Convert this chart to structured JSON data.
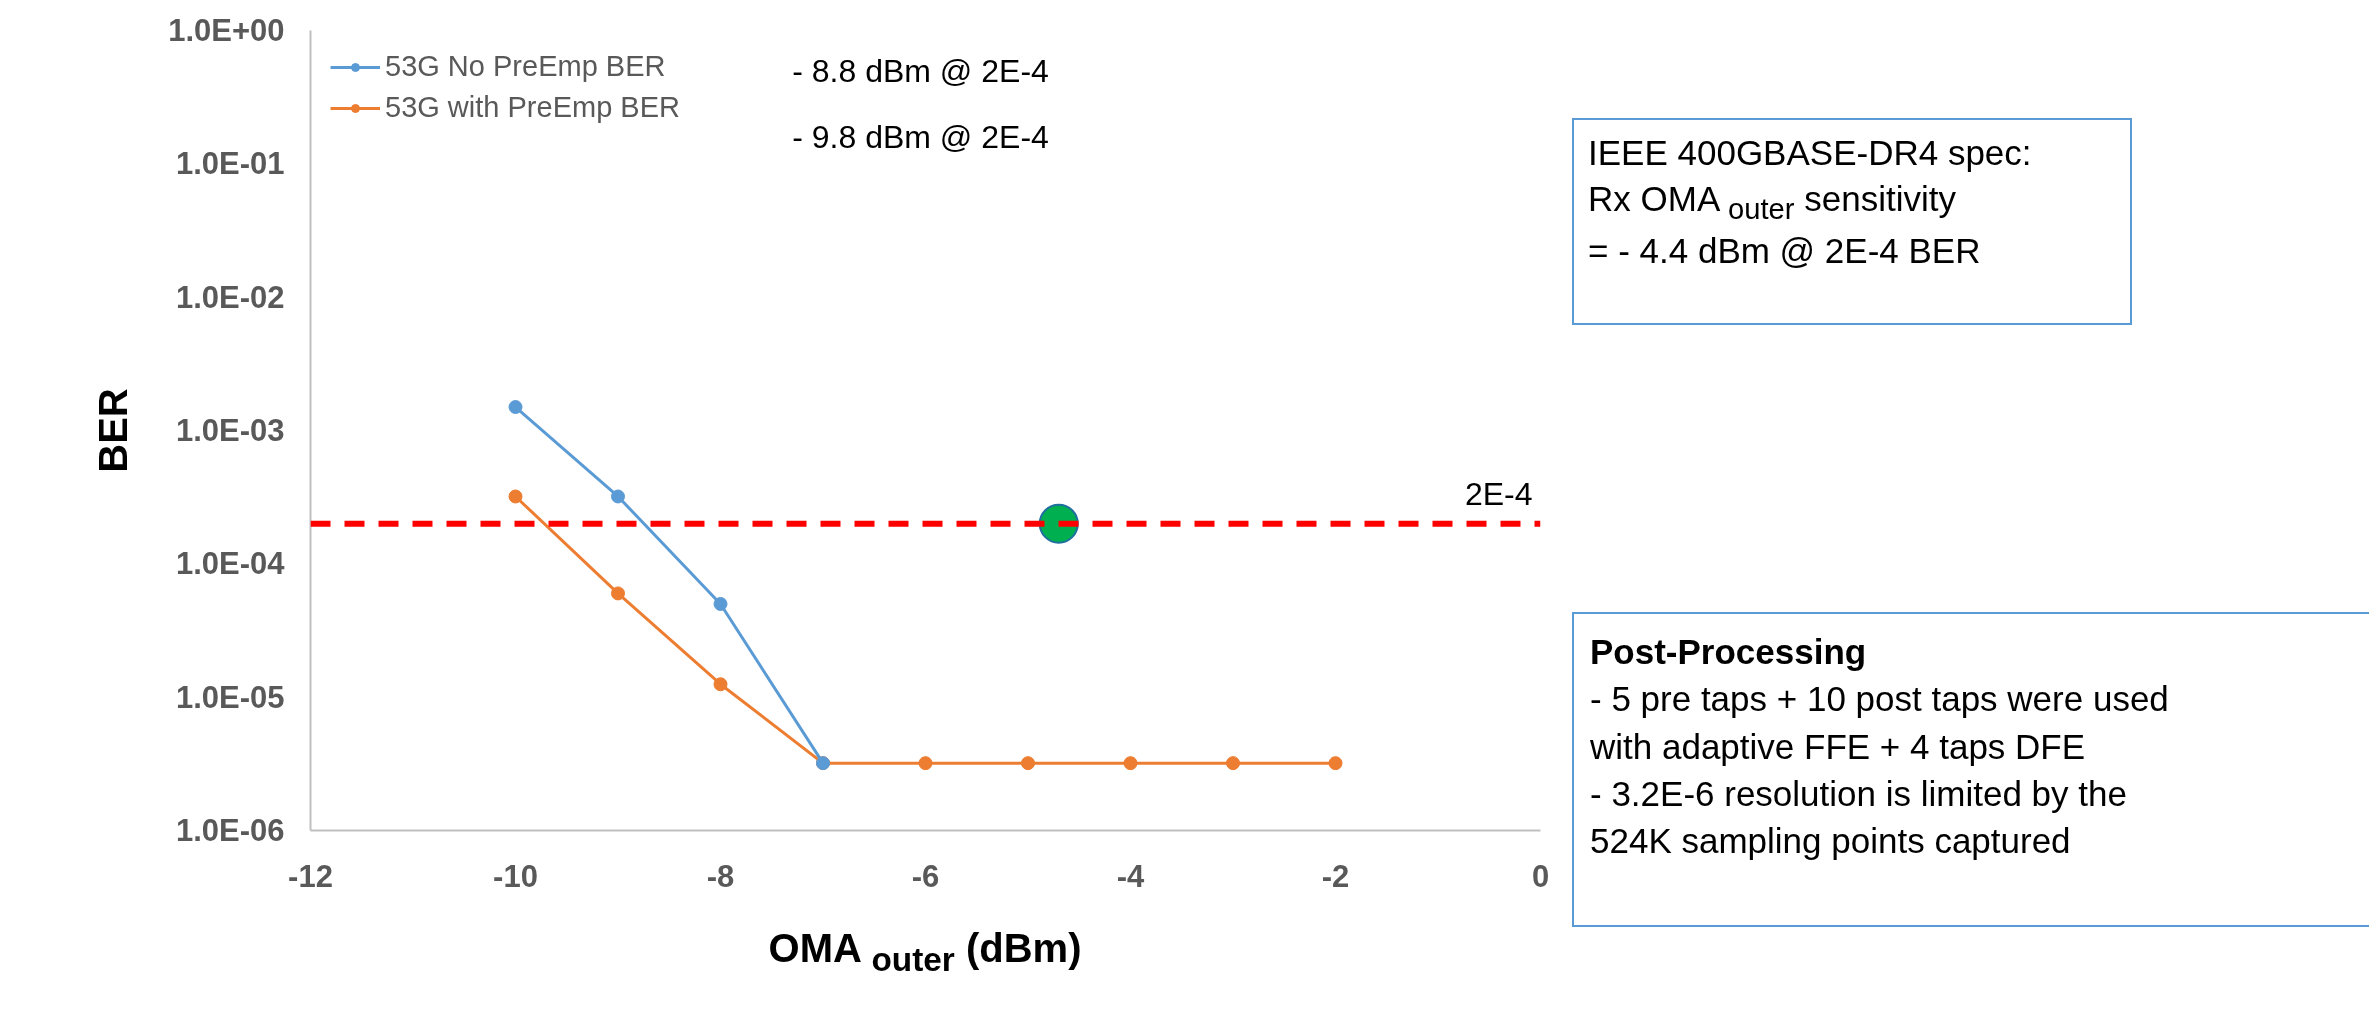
{
  "chart_data": {
    "type": "line",
    "xlabel": "OMA $_{outer}$ (dBm)",
    "ylabel": "BER",
    "x": [
      -10,
      -9,
      -8,
      -7,
      -6,
      -5,
      -4,
      -3,
      -2
    ],
    "series": [
      {
        "name": "53G No PreEmp BER",
        "color": "#5b9bd5",
        "values": [
          0.0015,
          0.00032,
          5e-05,
          3.2e-06,
          null,
          null,
          null,
          null,
          null
        ]
      },
      {
        "name": "53G with PreEmp BER",
        "color": "#ed7d31",
        "values": [
          0.00032,
          6e-05,
          1.25e-05,
          3.2e-06,
          3.2e-06,
          3.2e-06,
          3.2e-06,
          3.2e-06,
          3.2e-06
        ]
      },
      {
        "type": "scatter",
        "color": "#00b050",
        "x": [
          -4.7
        ],
        "values": [
          0.0002
        ]
      }
    ],
    "log": "y",
    "marker": "circle",
    "legend": "top left",
    "grid": false,
    "xlim": [
      -12,
      0
    ],
    "xticks": [
      -12,
      -10,
      -8,
      -6,
      -4,
      -2,
      0
    ],
    "ylim": [
      1e-06,
      1
    ],
    "yticks": [
      {
        "value": 1e-06,
        "label": "1.0E-06"
      },
      {
        "value": 1e-05,
        "label": "1.0E-05"
      },
      {
        "value": 0.0001,
        "label": "1.0E-04"
      },
      {
        "value": 0.001,
        "label": "1.0E-03"
      },
      {
        "value": 0.01,
        "label": "1.0E-02"
      },
      {
        "value": 0.1,
        "label": "1.0E-01"
      },
      {
        "value": 1,
        "label": "1.0E+00"
      }
    ],
    "ref_lines": [
      {
        "axis": "y",
        "value": 0.0002,
        "label": "2E-4",
        "color": "#ff0000",
        "line_style": "dashed"
      }
    ],
    "annotations": [
      "- 8.8 dBm @ 2E-4",
      "- 9.8 dBm @ 2E-4",
      "IEEE 400GBASE-DR4 spec:\nRx OMA $_{outer}$ sensitivity\n= - 4.4 dBm @ 2E-4 BER",
      "Post-Processing\n- 5 pre taps + 10 post taps were used\nwith adaptive FFE + 4 taps DFE\n- 3.2E-6 resolution is limited by the\n524K sampling points captured"
    ]
  }
}
